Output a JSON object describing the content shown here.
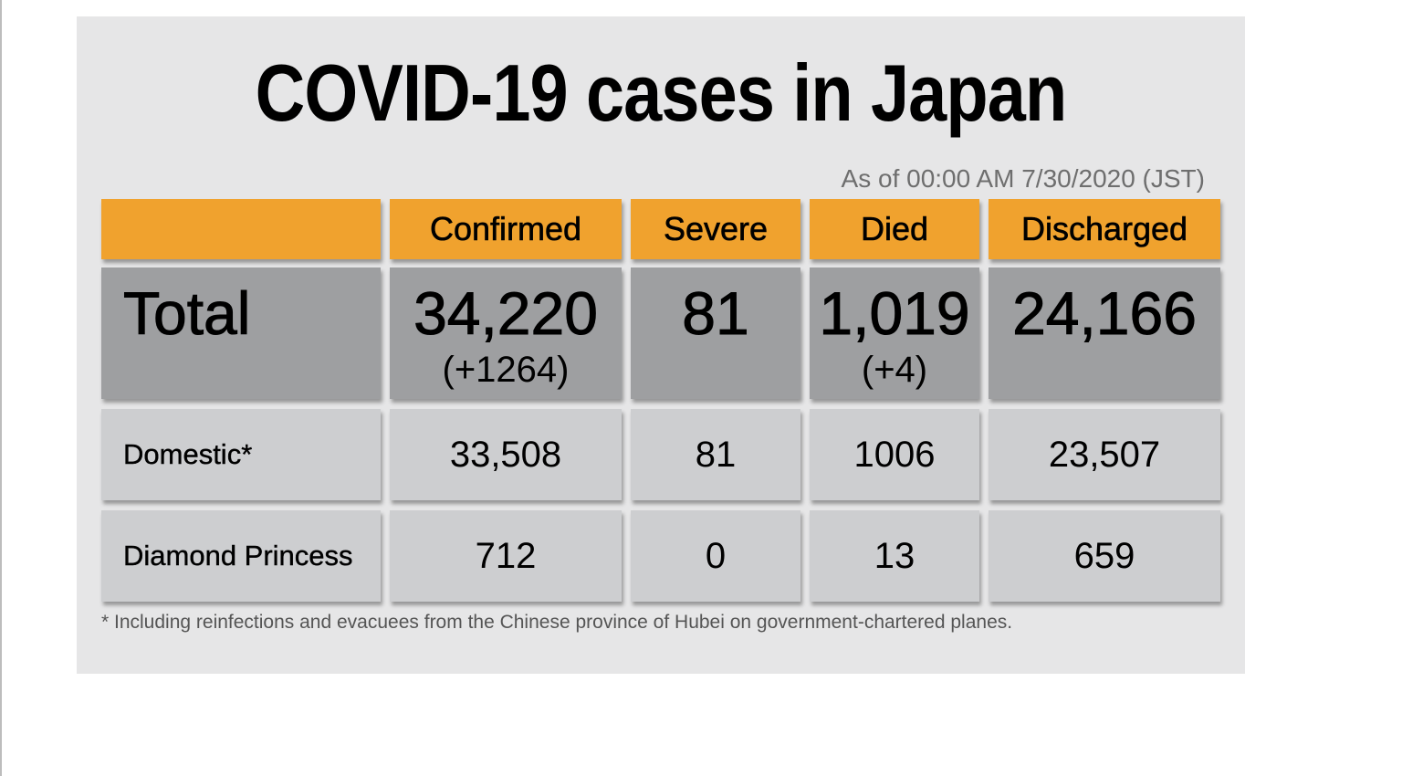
{
  "chart_data": {
    "type": "table",
    "title": "COVID-19 cases in Japan",
    "subtitle": "As of 00:00 AM 7/30/2020 (JST)",
    "columns": [
      "Confirmed",
      "Severe",
      "Died",
      "Discharged"
    ],
    "rows": [
      {
        "label": "Total",
        "values": [
          "34,220",
          "81",
          "1,019",
          "24,166"
        ],
        "changes": [
          "(+1264)",
          "",
          "(+4)",
          ""
        ]
      },
      {
        "label": "Domestic*",
        "values": [
          "33,508",
          "81",
          "1006",
          "23,507"
        ]
      },
      {
        "label": "Diamond Princess",
        "values": [
          "712",
          "0",
          "13",
          "659"
        ]
      }
    ],
    "footnote": "* Including reinfections and evacuees from the Chinese province of Hubei on government-chartered planes."
  },
  "colors": {
    "header": "#f0a22e",
    "total_row": "#9e9fa1",
    "body_row": "#cdced0",
    "background": "#e6e6e7"
  }
}
